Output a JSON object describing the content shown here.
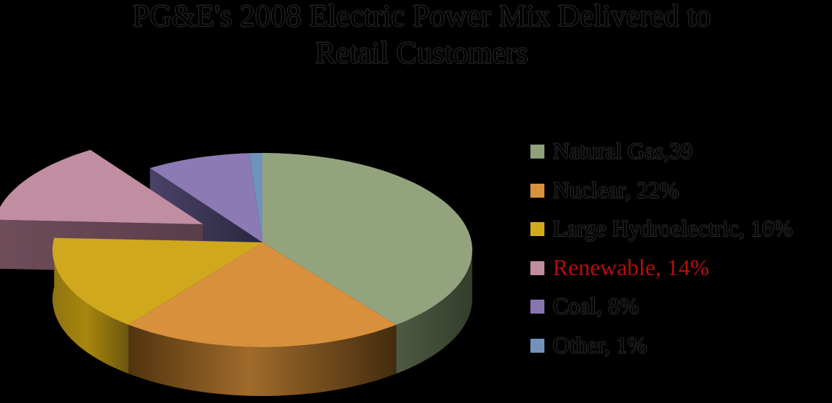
{
  "background_color": "#000000",
  "title": {
    "line1": "PG&E's 2008 Electric Power Mix Delivered to",
    "line2": "Retail Customers"
  },
  "chart_data": {
    "type": "pie",
    "title": "PG&E's 2008 Electric Power Mix Delivered to Retail Customers",
    "unit": "%",
    "effect": "3d",
    "direction": "clockwise",
    "start_angle_deg": 0,
    "legend_position": "right",
    "exploded_slice": "Renewable",
    "slices": [
      {
        "label": "Natural Gas",
        "value": 39,
        "legend_text": "Natural Gas,39",
        "color": "#93a37e",
        "swatch": "#8fa07b",
        "side_colors": [
          "#4e5a42",
          "#333d2a"
        ],
        "text_color": "#000000",
        "exploded": false
      },
      {
        "label": "Nuclear",
        "value": 22,
        "legend_text": "Nuclear, 22%",
        "color": "#d8903d",
        "swatch": "#d8913c",
        "side_colors": [
          "#52340f",
          "#9f6b2b",
          "#432c0e"
        ],
        "text_color": "#000000",
        "exploded": false
      },
      {
        "label": "Large Hydroelectric",
        "value": 16,
        "legend_text": "Large Hydroelectric, 16%",
        "color": "#d0a81d",
        "swatch": "#d2aa1e",
        "side_colors": [
          "#8f7410",
          "#a8870e",
          "#6b560f"
        ],
        "text_color": "#000000",
        "exploded": false
      },
      {
        "label": "Renewable",
        "value": 14,
        "legend_text": "Renewable, 14%",
        "color": "#c08da1",
        "swatch": "#c08ca0",
        "side_colors": [
          "#6f4d5a",
          "#5a3d49"
        ],
        "text_color": "#b50d0d",
        "exploded": true
      },
      {
        "label": "Coal",
        "value": 8,
        "legend_text": "Coal, 8%",
        "color": "#8b7ab4",
        "swatch": "#8775ae",
        "side_colors": [
          "#4a4268",
          "#2b273e"
        ],
        "text_color": "#000000",
        "exploded": false
      },
      {
        "label": "Other",
        "value": 1,
        "legend_text": "Other, 1%",
        "color": "#7093bb",
        "swatch": "#7292bc",
        "side_colors": null,
        "text_color": "#000000",
        "exploded": false
      }
    ]
  }
}
